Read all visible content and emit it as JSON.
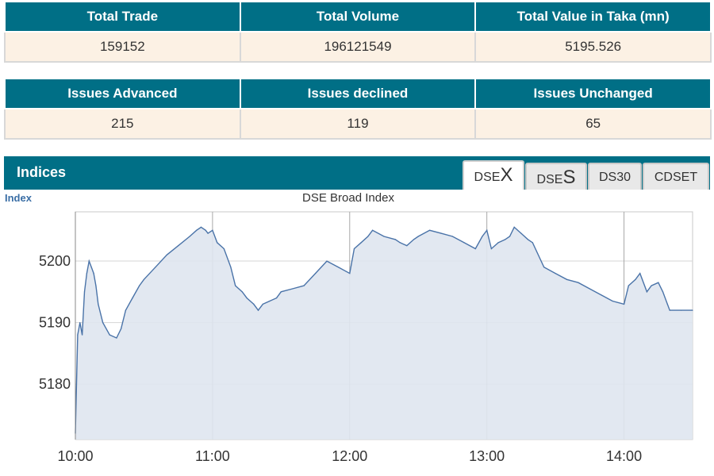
{
  "summary_1": {
    "headers": [
      "Total Trade",
      "Total Volume",
      "Total Value in Taka (mn)"
    ],
    "values": [
      "159152",
      "196121549",
      "5195.526"
    ]
  },
  "summary_2": {
    "headers": [
      "Issues Advanced",
      "Issues declined",
      "Issues Unchanged"
    ],
    "values": [
      "215",
      "119",
      "65"
    ]
  },
  "indices": {
    "title": "Indices",
    "tabs": [
      {
        "prefix": "DSE",
        "suffix": "X",
        "active": true
      },
      {
        "prefix": "DSE",
        "suffix": "S",
        "active": false
      },
      {
        "label": "DS30",
        "active": false
      },
      {
        "label": "CDSET",
        "active": false
      }
    ]
  },
  "chart_data": {
    "type": "area",
    "title": "DSE Broad Index",
    "ylabel": "Index",
    "xlabel": "",
    "x_ticks": [
      "10:00",
      "11:00",
      "12:00",
      "13:00",
      "14:00"
    ],
    "y_ticks": [
      5180,
      5190,
      5200
    ],
    "ylim": [
      5171,
      5208
    ],
    "xlim": [
      "10:00",
      "14:30"
    ],
    "grid": true,
    "fill_color": "#dfe6f0",
    "line_color": "#4a73a8",
    "series": [
      {
        "x": [
          "10:00",
          "10:01",
          "10:02",
          "10:03",
          "10:04",
          "10:05",
          "10:06",
          "10:07",
          "10:08",
          "10:09",
          "10:10",
          "10:12",
          "10:15",
          "10:18",
          "10:20",
          "10:22",
          "10:25",
          "10:28",
          "10:30",
          "10:35",
          "10:40",
          "10:45",
          "10:50",
          "10:53",
          "10:55",
          "10:57",
          "10:58",
          "11:00",
          "11:02",
          "11:05",
          "11:08",
          "11:10",
          "11:13",
          "11:15",
          "11:18",
          "11:20",
          "11:22",
          "11:25",
          "11:28",
          "11:30",
          "11:35",
          "11:40",
          "11:45",
          "11:50",
          "11:55",
          "12:00",
          "12:02",
          "12:05",
          "12:08",
          "12:10",
          "12:15",
          "12:20",
          "12:22",
          "12:25",
          "12:28",
          "12:30",
          "12:35",
          "12:40",
          "12:45",
          "12:50",
          "12:55",
          "12:58",
          "13:00",
          "13:02",
          "13:05",
          "13:08",
          "13:10",
          "13:12",
          "13:15",
          "13:18",
          "13:20",
          "13:25",
          "13:30",
          "13:35",
          "13:40",
          "13:45",
          "13:50",
          "13:55",
          "14:00",
          "14:02",
          "14:05",
          "14:07",
          "14:10",
          "14:12",
          "14:15",
          "14:17",
          "14:19",
          "14:20",
          "14:25",
          "14:30"
        ],
        "y": [
          5172,
          5188,
          5190,
          5188,
          5195,
          5198,
          5200,
          5199,
          5198,
          5196,
          5193,
          5190,
          5188,
          5187.5,
          5189,
          5192,
          5194,
          5196,
          5197,
          5199,
          5201,
          5202.5,
          5204,
          5205,
          5205.5,
          5205,
          5204.5,
          5205,
          5203,
          5202,
          5199,
          5196,
          5195,
          5194,
          5193,
          5192,
          5193,
          5193.5,
          5194,
          5195,
          5195.5,
          5196,
          5198,
          5200,
          5199,
          5198,
          5202,
          5203,
          5204,
          5205,
          5204,
          5203.5,
          5203,
          5202.5,
          5203.5,
          5204,
          5205,
          5204.5,
          5204,
          5203,
          5202,
          5204,
          5205,
          5202,
          5203,
          5203.5,
          5204,
          5205.5,
          5204.5,
          5203.5,
          5203,
          5199,
          5198,
          5197,
          5196.5,
          5195.5,
          5194.5,
          5193.5,
          5193,
          5196,
          5197,
          5198,
          5195,
          5196,
          5196.5,
          5195,
          5193,
          5192,
          5192,
          5192
        ]
      }
    ]
  }
}
